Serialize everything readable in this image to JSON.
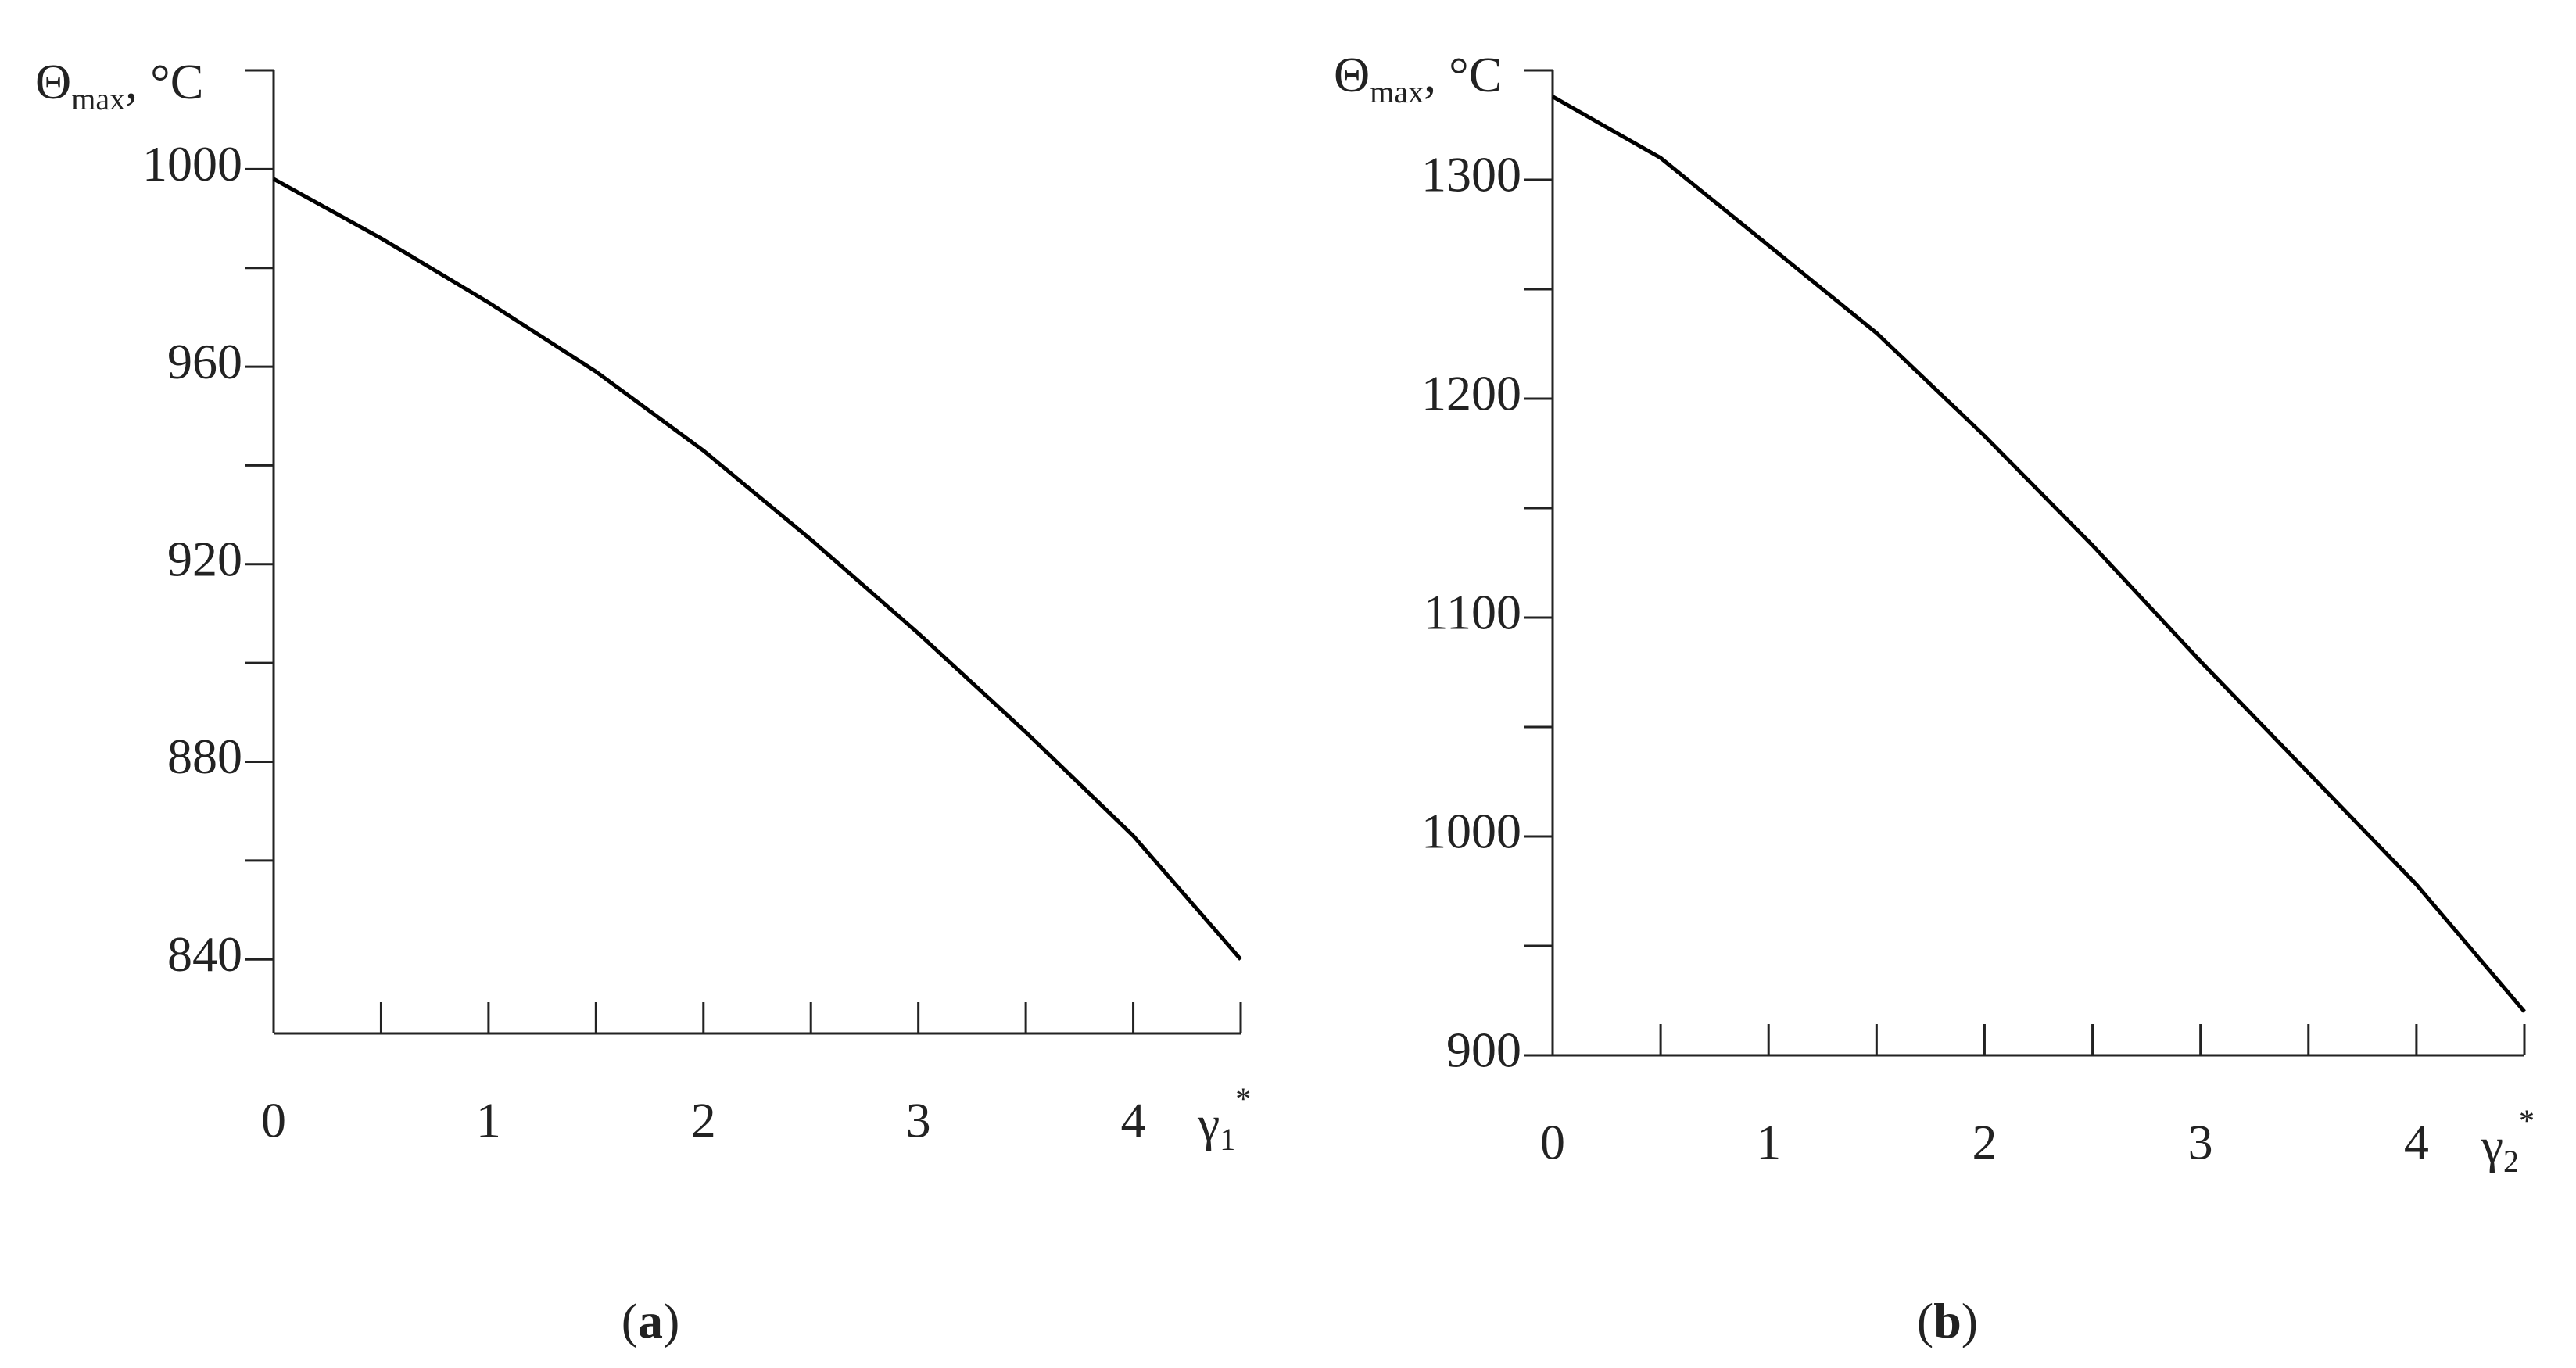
{
  "chart_data": [
    {
      "type": "line",
      "ylabel": {
        "symbol": "Θ",
        "subscript": "max",
        "unit": ", °C"
      },
      "xlabel": {
        "symbol": "γ",
        "subscript": "1",
        "superscript": "*"
      },
      "caption": [
        "(",
        "a",
        ")"
      ],
      "x": [
        0,
        0.5,
        1,
        1.5,
        2,
        2.5,
        3,
        3.5,
        4,
        4.5
      ],
      "series": [
        {
          "color": "#000000",
          "values": [
            998,
            986,
            973,
            959,
            943,
            925,
            906,
            886,
            865,
            840
          ]
        }
      ],
      "xlim": [
        0,
        4.5
      ],
      "xticks": [
        0,
        1,
        2,
        3,
        4
      ],
      "xminorticks": [
        0.5,
        1.5,
        2.5,
        3.5,
        4.5
      ],
      "ylim": [
        825,
        1020
      ],
      "yticks": [
        840,
        880,
        920,
        960,
        1000
      ],
      "yminorticks": [
        860,
        900,
        940,
        980,
        1020
      ]
    },
    {
      "type": "line",
      "ylabel": {
        "symbol": "Θ",
        "subscript": "max",
        "unit": ", °C"
      },
      "xlabel": {
        "symbol": "γ",
        "subscript": "2",
        "superscript": "*"
      },
      "caption": [
        "(",
        "b",
        ")"
      ],
      "x": [
        0,
        0.5,
        1,
        1.5,
        2,
        2.5,
        3,
        3.5,
        4,
        4.5
      ],
      "series": [
        {
          "color": "#000000",
          "values": [
            1338,
            1310,
            1270,
            1230,
            1183,
            1133,
            1080,
            1029,
            978,
            920
          ]
        }
      ],
      "xlim": [
        0,
        4.5
      ],
      "xticks": [
        0,
        1,
        2,
        3,
        4
      ],
      "xminorticks": [
        0.5,
        1.5,
        2.5,
        3.5,
        4.5
      ],
      "ylim": [
        900,
        1350
      ],
      "yticks": [
        900,
        1000,
        1100,
        1200,
        1300
      ],
      "yminorticks": [
        950,
        1050,
        1150,
        1250,
        1350
      ]
    }
  ]
}
